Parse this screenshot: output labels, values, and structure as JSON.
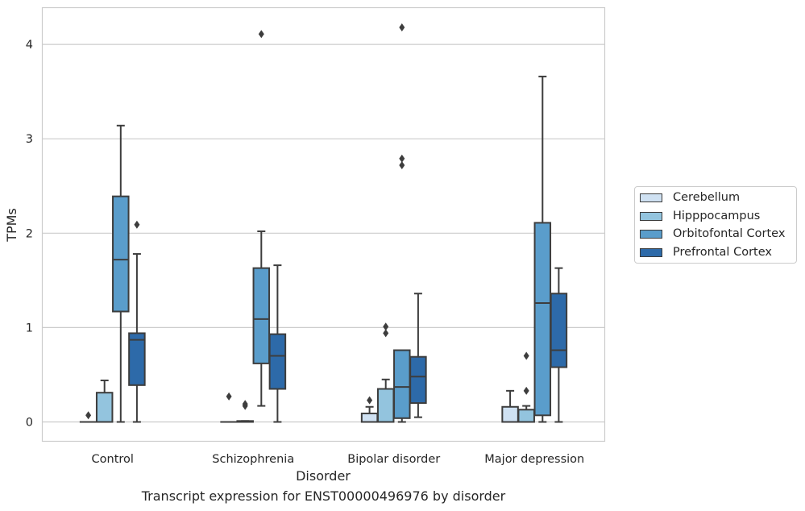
{
  "caption": "Transcript expression for ENST00000496976 by disorder",
  "chart_data": {
    "type": "box",
    "title": "",
    "xlabel": "Disorder",
    "ylabel": "TPMs",
    "ylim": [
      -0.2,
      4.4
    ],
    "yticks": [
      0,
      1,
      2,
      3,
      4
    ],
    "grid": "horizontal",
    "legend_position": "right",
    "categories": [
      "Control",
      "Schizophrenia",
      "Bipolar disorder",
      "Major depression"
    ],
    "series": [
      {
        "name": "Cerebellum",
        "color": "#cfe1f2",
        "boxes": [
          {
            "q1": 0,
            "median": 0,
            "q3": 0,
            "whisker_low": 0,
            "whisker_high": 0,
            "outliers": [
              0.07
            ]
          },
          {
            "q1": 0,
            "median": 0,
            "q3": 0,
            "whisker_low": 0,
            "whisker_high": 0,
            "outliers": [
              0.27
            ]
          },
          {
            "q1": 0,
            "median": 0,
            "q3": 0.09,
            "whisker_low": 0,
            "whisker_high": 0.16,
            "outliers": [
              0.23
            ]
          },
          {
            "q1": 0,
            "median": 0,
            "q3": 0.16,
            "whisker_low": 0,
            "whisker_high": 0.33,
            "outliers": []
          }
        ]
      },
      {
        "name": "Hipppocampus",
        "color": "#93c4de",
        "boxes": [
          {
            "q1": 0,
            "median": 0,
            "q3": 0.31,
            "whisker_low": 0,
            "whisker_high": 0.44,
            "outliers": []
          },
          {
            "q1": 0,
            "median": 0,
            "q3": 0.01,
            "whisker_low": 0,
            "whisker_high": 0.01,
            "outliers": [
              0.17,
              0.19
            ]
          },
          {
            "q1": 0,
            "median": 0,
            "q3": 0.35,
            "whisker_low": 0,
            "whisker_high": 0.45,
            "outliers": [
              0.94,
              1.01
            ]
          },
          {
            "q1": 0,
            "median": 0,
            "q3": 0.13,
            "whisker_low": 0,
            "whisker_high": 0.17,
            "outliers": [
              0.33,
              0.7
            ]
          }
        ]
      },
      {
        "name": "Orbitofontal Cortex",
        "color": "#5a9dcb",
        "boxes": [
          {
            "q1": 1.17,
            "median": 1.72,
            "q3": 2.39,
            "whisker_low": 0,
            "whisker_high": 3.14,
            "outliers": []
          },
          {
            "q1": 0.62,
            "median": 1.09,
            "q3": 1.63,
            "whisker_low": 0.17,
            "whisker_high": 2.02,
            "outliers": [
              4.11
            ]
          },
          {
            "q1": 0.04,
            "median": 0.37,
            "q3": 0.76,
            "whisker_low": 0,
            "whisker_high": 0.76,
            "outliers": [
              2.72,
              2.79,
              4.18
            ]
          },
          {
            "q1": 0.07,
            "median": 1.26,
            "q3": 2.11,
            "whisker_low": 0,
            "whisker_high": 3.66,
            "outliers": []
          }
        ]
      },
      {
        "name": "Prefrontal Cortex",
        "color": "#2d6aa9",
        "boxes": [
          {
            "q1": 0.39,
            "median": 0.87,
            "q3": 0.94,
            "whisker_low": 0,
            "whisker_high": 1.78,
            "outliers": [
              2.09
            ]
          },
          {
            "q1": 0.35,
            "median": 0.7,
            "q3": 0.93,
            "whisker_low": 0,
            "whisker_high": 1.66,
            "outliers": []
          },
          {
            "q1": 0.2,
            "median": 0.48,
            "q3": 0.69,
            "whisker_low": 0.05,
            "whisker_high": 1.36,
            "outliers": []
          },
          {
            "q1": 0.58,
            "median": 0.76,
            "q3": 1.36,
            "whisker_low": 0,
            "whisker_high": 1.63,
            "outliers": []
          }
        ]
      }
    ]
  }
}
